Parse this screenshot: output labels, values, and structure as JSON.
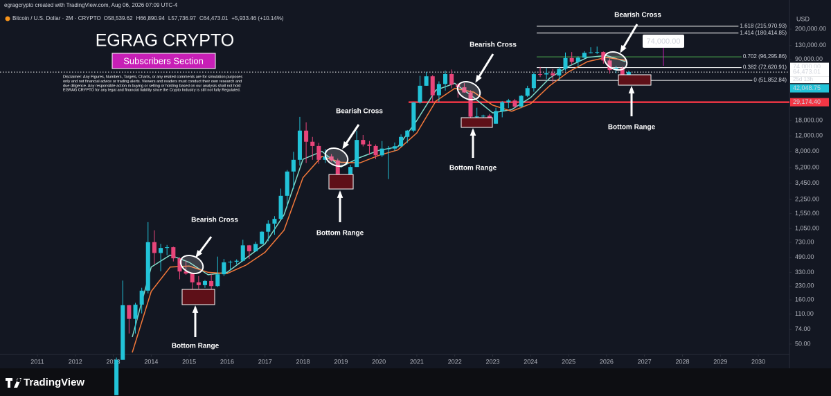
{
  "header": {
    "author_line": "egragcrypto created with TradingView.com, Aug 06, 2026 07:09 UTC-4",
    "symbol": "Bitcoin / U.S. Dollar · 2M · CRYPTO",
    "legend_items": [
      "O58,539.62",
      "H66,890.94",
      "L57,736.97",
      "C64,473.01",
      "+5,933.46 (+10.14%)"
    ],
    "currency": "USD"
  },
  "footer": {
    "brand": "TradingView"
  },
  "chart_data": {
    "type": "candlestick",
    "title": "EGRAG CRYPTO",
    "subtitle": "Subscribers Section",
    "disclaimer": [
      "Disclaimer: Any Figures, Numbers, Targets, Charts, or any related comments are for simulation purposes",
      "only and not financial advice or trading alerts. Viewers and readers must conduct their own research and",
      "due diligence. Any responsible action in buying or selling or holding based on our analysis shall not hold",
      "EGRAG CRYPTO for any legal and financial liability since the Crypto Industry is still not fully Regulated."
    ],
    "up_color": "#22c3d8",
    "down_color": "#e8457a",
    "x": [
      2013.0,
      2013.167,
      2013.333,
      2013.5,
      2013.667,
      2013.833,
      2014.0,
      2014.167,
      2014.333,
      2014.5,
      2014.667,
      2014.833,
      2015.0,
      2015.167,
      2015.333,
      2015.5,
      2015.667,
      2015.833,
      2016.0,
      2016.167,
      2016.333,
      2016.5,
      2016.667,
      2016.833,
      2017.0,
      2017.167,
      2017.333,
      2017.5,
      2017.667,
      2017.833,
      2018.0,
      2018.167,
      2018.333,
      2018.5,
      2018.667,
      2018.833,
      2019.0,
      2019.167,
      2019.333,
      2019.5,
      2019.667,
      2019.833,
      2020.0,
      2020.167,
      2020.333,
      2020.5,
      2020.667,
      2020.833,
      2021.0,
      2021.167,
      2021.333,
      2021.5,
      2021.667,
      2021.833,
      2022.0,
      2022.167,
      2022.333,
      2022.5,
      2022.667,
      2022.833,
      2023.0,
      2023.167,
      2023.333,
      2023.5,
      2023.667,
      2023.833,
      2024.0,
      2024.167,
      2024.333,
      2024.5,
      2024.667,
      2024.833,
      2025.0,
      2025.167,
      2025.333,
      2025.5,
      2025.667,
      2025.833,
      2026.0,
      2026.167,
      2026.333,
      2026.5
    ],
    "open": [
      13,
      33,
      139,
      97,
      141,
      204,
      732,
      550,
      628,
      640,
      478,
      338,
      320,
      254,
      236,
      263,
      230,
      314,
      430,
      437,
      448,
      673,
      575,
      698,
      963,
      1190,
      1350,
      2480,
      4700,
      6400,
      13800,
      10300,
      9200,
      6400,
      7000,
      6300,
      3700,
      3850,
      5300,
      10800,
      9600,
      9200,
      7200,
      8600,
      8600,
      9150,
      11700,
      13800,
      29000,
      45000,
      57700,
      35000,
      47100,
      61300,
      46300,
      43200,
      37700,
      19900,
      20050,
      20500,
      16550,
      23100,
      29200,
      30500,
      26000,
      34500,
      42300,
      61100,
      60600,
      62700,
      58900,
      70200,
      93400,
      84300,
      94200,
      107100,
      108200,
      109500,
      87500,
      68000,
      72000,
      58539.62
    ],
    "high": [
      35,
      266,
      140,
      148,
      220,
      1240,
      1000,
      700,
      680,
      650,
      490,
      450,
      320,
      300,
      270,
      315,
      500,
      470,
      450,
      465,
      780,
      680,
      740,
      980,
      1300,
      1450,
      3000,
      4900,
      7900,
      19800,
      17200,
      11700,
      9990,
      8500,
      7450,
      6600,
      4200,
      5600,
      13800,
      12300,
      10500,
      9600,
      10500,
      9200,
      10100,
      12500,
      14000,
      29300,
      58400,
      64900,
      59600,
      50500,
      67000,
      69000,
      48000,
      48200,
      40000,
      25200,
      21000,
      21400,
      25200,
      30000,
      31800,
      31800,
      35300,
      45000,
      64000,
      73800,
      72000,
      70000,
      73600,
      108000,
      109300,
      97900,
      111900,
      124100,
      126200,
      111000,
      92000,
      76000,
      74500,
      66890.94
    ],
    "low": [
      13,
      33,
      66,
      66,
      112,
      190,
      410,
      340,
      520,
      440,
      275,
      310,
      152,
      215,
      220,
      200,
      225,
      300,
      350,
      410,
      440,
      470,
      565,
      690,
      750,
      890,
      1340,
      1830,
      2970,
      5500,
      5900,
      6400,
      5750,
      5900,
      6100,
      3150,
      3350,
      3850,
      5300,
      9100,
      7300,
      6500,
      6900,
      3850,
      8100,
      9000,
      10000,
      13200,
      28100,
      44900,
      28800,
      29300,
      39600,
      42000,
      32900,
      37400,
      17600,
      17500,
      18100,
      15500,
      16500,
      19600,
      25000,
      25200,
      24900,
      33400,
      38500,
      56500,
      53500,
      49000,
      52500,
      66800,
      78200,
      74500,
      93400,
      105200,
      103500,
      80600,
      62000,
      62500,
      55500,
      57736.97
    ],
    "close": [
      33,
      139,
      97,
      141,
      204,
      732,
      550,
      628,
      640,
      478,
      338,
      320,
      254,
      236,
      263,
      230,
      314,
      430,
      437,
      448,
      673,
      575,
      698,
      963,
      1190,
      1350,
      2480,
      4700,
      6400,
      13800,
      10300,
      9200,
      6400,
      7000,
      6300,
      3700,
      3850,
      5300,
      10800,
      9600,
      9200,
      7200,
      8600,
      8600,
      9150,
      11700,
      13800,
      29000,
      45000,
      57700,
      35000,
      47100,
      61300,
      46300,
      43200,
      37700,
      19900,
      20050,
      20500,
      16550,
      23100,
      29200,
      30500,
      26000,
      34500,
      42300,
      61100,
      60600,
      62700,
      58900,
      70200,
      93400,
      84300,
      94200,
      107100,
      108200,
      109500,
      87500,
      68000,
      72000,
      58539.62,
      64473.01
    ],
    "overlays": [
      {
        "color": "#7fd9c8",
        "x": [
          2013.5,
          2014.0,
          2014.5,
          2015.0,
          2015.5,
          2016.0,
          2016.5,
          2017.0,
          2017.5,
          2018.0,
          2018.5,
          2019.0,
          2019.5,
          2020.0,
          2020.5,
          2021.0,
          2021.5,
          2022.0,
          2022.5,
          2023.0,
          2023.5,
          2024.0,
          2024.5,
          2025.0,
          2025.5,
          2026.0,
          2026.5
        ],
        "values": [
          60,
          380,
          520,
          430,
          310,
          330,
          480,
          700,
          1500,
          6500,
          8000,
          5300,
          6800,
          8200,
          9000,
          18000,
          40000,
          48000,
          33000,
          22000,
          24000,
          33000,
          55000,
          75000,
          95000,
          100000,
          85000
        ]
      },
      {
        "color": "#f5793a",
        "x": [
          2013.5,
          2014.0,
          2014.5,
          2015.0,
          2015.5,
          2016.0,
          2016.5,
          2017.0,
          2017.5,
          2018.0,
          2018.5,
          2019.0,
          2019.5,
          2020.0,
          2020.5,
          2021.0,
          2021.5,
          2022.0,
          2022.5,
          2023.0,
          2023.5,
          2024.0,
          2024.5,
          2025.0,
          2025.5,
          2026.0,
          2026.5
        ],
        "values": [
          40,
          200,
          380,
          390,
          330,
          320,
          400,
          560,
          1000,
          4000,
          7000,
          6000,
          5900,
          7200,
          8300,
          13000,
          30000,
          42000,
          38000,
          27000,
          23000,
          28000,
          45000,
          65000,
          85000,
          95000,
          88000
        ]
      }
    ],
    "log_scale": true,
    "grid": false,
    "xlim": [
      2010.015,
      2030.82
    ],
    "xticks": [
      2011,
      2012,
      2013,
      2014,
      2015,
      2016,
      2017,
      2018,
      2019,
      2020,
      2021,
      2022,
      2023,
      2024,
      2025,
      2026,
      2027,
      2028,
      2029,
      2030
    ],
    "ylim": [
      38,
      310000
    ],
    "yticks": [
      {
        "value": 50,
        "label": "50.00"
      },
      {
        "value": 74,
        "label": "74.00"
      },
      {
        "value": 110,
        "label": "110.00"
      },
      {
        "value": 160,
        "label": "160.00"
      },
      {
        "value": 230,
        "label": "230.00"
      },
      {
        "value": 330,
        "label": "330.00"
      },
      {
        "value": 490,
        "label": "490.00"
      },
      {
        "value": 730,
        "label": "730.00"
      },
      {
        "value": 1050,
        "label": "1,050.00"
      },
      {
        "value": 1550,
        "label": "1,550.00"
      },
      {
        "value": 2250,
        "label": "2,250.00"
      },
      {
        "value": 3450,
        "label": "3,450.00"
      },
      {
        "value": 5200,
        "label": "5,200.00"
      },
      {
        "value": 8000,
        "label": "8,000.00"
      },
      {
        "value": 12000,
        "label": "12,000.00"
      },
      {
        "value": 18000,
        "label": "18,000.00"
      },
      {
        "value": 90000,
        "label": "90,000.00"
      },
      {
        "value": 130000,
        "label": "130,000.00"
      },
      {
        "value": 200000,
        "label": "200,000.00"
      }
    ],
    "fib_levels": [
      {
        "value": 215970.93,
        "label": "1.618 (215,970.93)",
        "color": "#ffffff"
      },
      {
        "value": 180414.85,
        "label": "1.414 (180,414.85)",
        "color": "#ffffff"
      },
      {
        "value": 96295.86,
        "label": "0.702 (96,295.86)",
        "color": "#4caf50"
      },
      {
        "value": 72620.91,
        "label": "0.382 (72,620.91)",
        "color": "#ffffff"
      },
      {
        "value": 51852.84,
        "label": "0 (51,852.84)",
        "color": "#ffffff"
      }
    ],
    "price_labels": [
      {
        "value": 74000,
        "label": "74,000.00",
        "color": "#ffffff"
      },
      {
        "value": 64473.01,
        "label": "64,473.01",
        "color": "#ffffff"
      },
      {
        "value": 42048.75,
        "label": "42,048.75",
        "color": "#22c3d8"
      },
      {
        "value": 29174.4,
        "label": "29,174.40",
        "color": "#f23645"
      }
    ],
    "countdown": "25d 13h",
    "target_label": "74,000.00",
    "callouts": [
      {
        "top": "Bearish Cross",
        "bottom": "Bottom Range"
      },
      {
        "top": "Bearish Cross",
        "bottom": "Bottom Range"
      },
      {
        "top": "Bearish Cross",
        "bottom": "Bottom Range"
      },
      {
        "top": "Bearish Cross",
        "bottom": "Bottom Range"
      }
    ]
  }
}
